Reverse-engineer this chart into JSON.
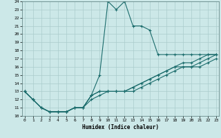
{
  "xlabel": "Humidex (Indice chaleur)",
  "ylabel": "",
  "background_color": "#cce8e8",
  "grid_color": "#aacccc",
  "line_color": "#1a6b6b",
  "xmin": 0,
  "xmax": 23,
  "ymin": 10,
  "ymax": 24,
  "xticks": [
    0,
    1,
    2,
    3,
    4,
    5,
    6,
    7,
    8,
    9,
    10,
    11,
    12,
    13,
    14,
    15,
    16,
    17,
    18,
    19,
    20,
    21,
    22,
    23
  ],
  "yticks": [
    10,
    11,
    12,
    13,
    14,
    15,
    16,
    17,
    18,
    19,
    20,
    21,
    22,
    23,
    24
  ],
  "curves": [
    [
      13.0,
      12.0,
      11.0,
      10.5,
      10.5,
      10.5,
      11.0,
      11.0,
      12.5,
      15.0,
      24.0,
      23.0,
      24.0,
      21.0,
      21.0,
      20.5,
      17.5,
      17.5,
      17.5,
      17.5,
      17.5,
      17.5,
      17.5,
      17.5
    ],
    [
      13.0,
      12.0,
      11.0,
      10.5,
      10.5,
      10.5,
      11.0,
      11.0,
      12.5,
      13.0,
      13.0,
      13.0,
      13.0,
      13.5,
      14.0,
      14.5,
      15.0,
      15.5,
      16.0,
      16.5,
      16.5,
      17.0,
      17.5,
      17.5
    ],
    [
      13.0,
      12.0,
      11.0,
      10.5,
      10.5,
      10.5,
      11.0,
      11.0,
      12.5,
      13.0,
      13.0,
      13.0,
      13.0,
      13.5,
      14.0,
      14.5,
      15.0,
      15.5,
      16.0,
      16.0,
      16.0,
      16.5,
      17.0,
      17.5
    ],
    [
      13.0,
      12.0,
      11.0,
      10.5,
      10.5,
      10.5,
      11.0,
      11.0,
      12.0,
      12.5,
      13.0,
      13.0,
      13.0,
      13.0,
      13.5,
      14.0,
      14.5,
      15.0,
      15.5,
      16.0,
      16.0,
      16.0,
      16.5,
      17.0
    ]
  ]
}
